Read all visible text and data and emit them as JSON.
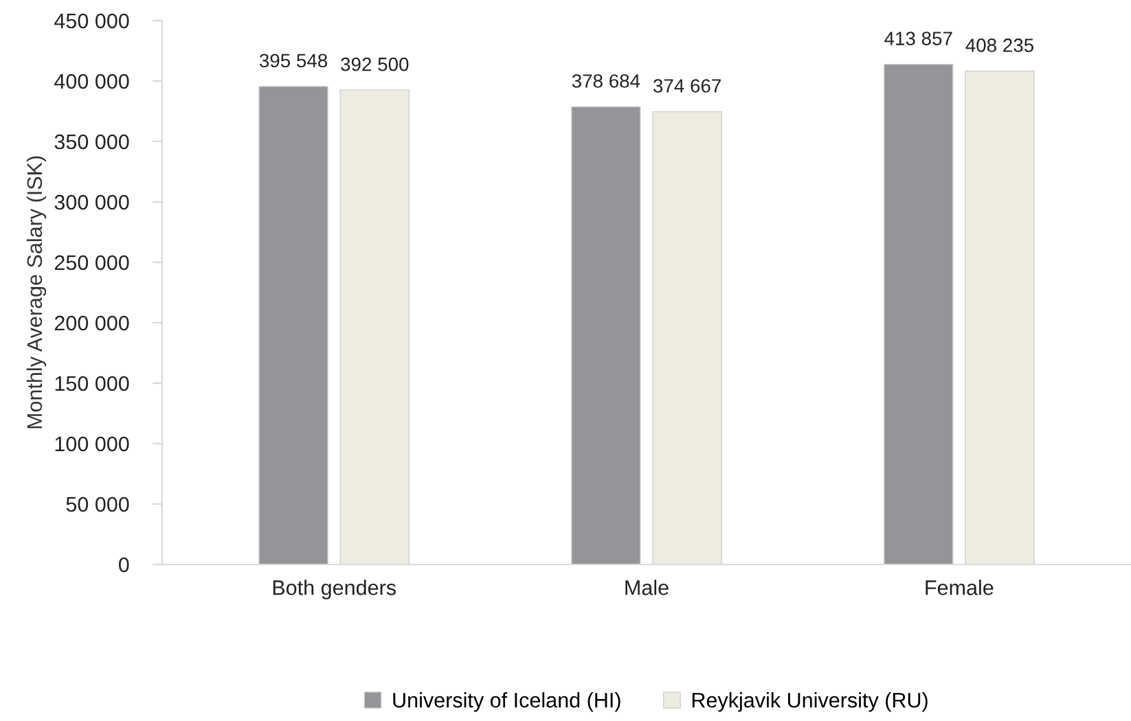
{
  "chart_data": {
    "type": "bar",
    "ylabel": "Monthly Average Salary (ISK)",
    "categories": [
      "Both genders",
      "Male",
      "Female"
    ],
    "series": [
      {
        "name": "University of Iceland (HI)",
        "color": "#939598",
        "values": [
          395548,
          378684,
          413857
        ],
        "value_labels": [
          "395 548",
          "378 684",
          "413 857"
        ]
      },
      {
        "name": "Reykjavik University (RU)",
        "color": "#eeebe0",
        "values": [
          392500,
          374667,
          408235
        ],
        "value_labels": [
          "392 500",
          "374 667",
          "408 235"
        ]
      }
    ],
    "ylim": [
      0,
      450000
    ],
    "yticks": [
      0,
      {
        "value": 50000,
        "label": "50 000"
      },
      {
        "value": 100000,
        "label": "100 000"
      },
      {
        "value": 150000,
        "label": "150 000"
      },
      {
        "value": 200000,
        "label": "200 000"
      },
      {
        "value": 250000,
        "label": "250 000"
      },
      {
        "value": 300000,
        "label": "300 000"
      },
      {
        "value": 350000,
        "label": "350 000"
      },
      {
        "value": 400000,
        "label": "400 000"
      },
      {
        "value": 450000,
        "label": "450 000"
      }
    ],
    "grid": false,
    "legend": "bottom"
  }
}
